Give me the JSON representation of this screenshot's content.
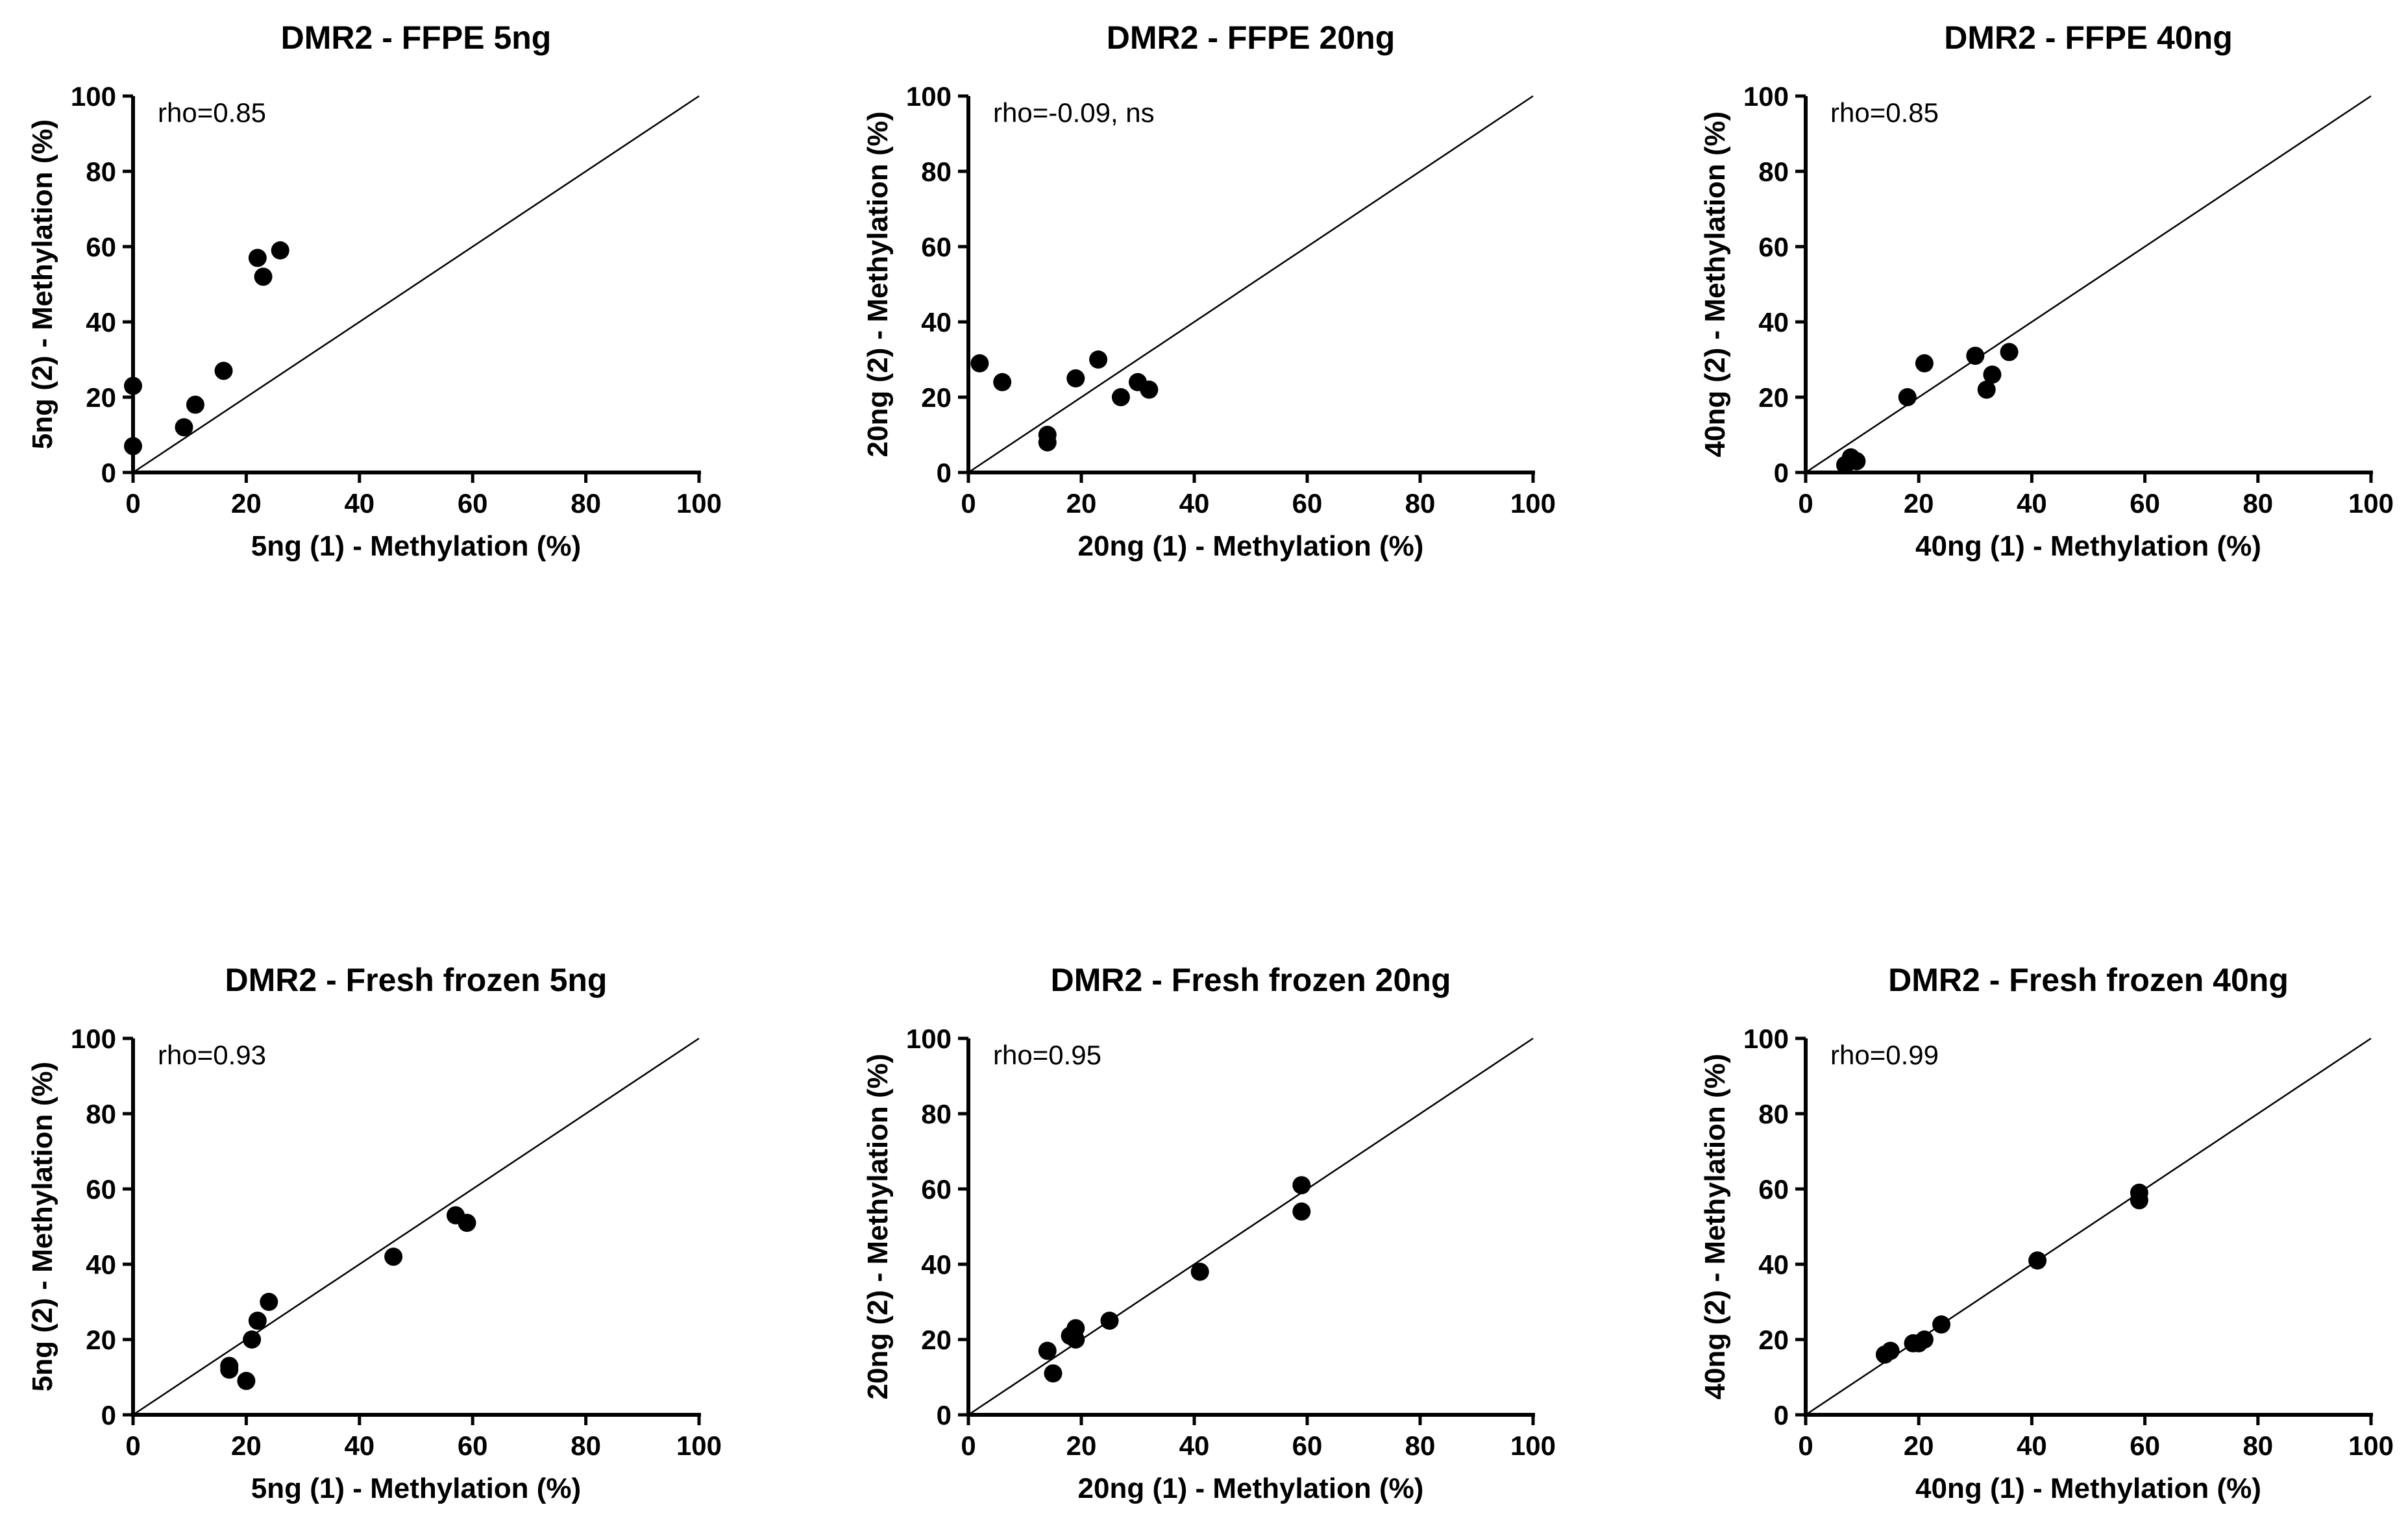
{
  "chart_data": [
    {
      "type": "scatter",
      "title": "DMR2 - FFPE 5ng",
      "xlabel": "5ng (1) - Methylation (%)",
      "ylabel": "5ng (2) - Methylation (%)",
      "xlim": [
        0,
        100
      ],
      "ylim": [
        0,
        100
      ],
      "xticks": [
        "0",
        "20",
        "40",
        "60",
        "80",
        "100"
      ],
      "yticks": [
        "0",
        "20",
        "40",
        "60",
        "80",
        "100"
      ],
      "annotation": "rho=0.85",
      "reference_line": "y = x",
      "points": [
        [
          0,
          23
        ],
        [
          0,
          7
        ],
        [
          9,
          12
        ],
        [
          11,
          18
        ],
        [
          16,
          27
        ],
        [
          22,
          57
        ],
        [
          23,
          52
        ],
        [
          26,
          59
        ]
      ]
    },
    {
      "type": "scatter",
      "title": "DMR2 - FFPE 20ng",
      "xlabel": "20ng (1) - Methylation (%)",
      "ylabel": "20ng (2) - Methylation (%)",
      "xlim": [
        0,
        100
      ],
      "ylim": [
        0,
        100
      ],
      "xticks": [
        "0",
        "20",
        "40",
        "60",
        "80",
        "100"
      ],
      "yticks": [
        "0",
        "20",
        "40",
        "60",
        "80",
        "100"
      ],
      "annotation": "rho=-0.09, ns",
      "reference_line": "y = x",
      "points": [
        [
          2,
          29
        ],
        [
          6,
          24
        ],
        [
          14,
          10
        ],
        [
          14,
          8
        ],
        [
          19,
          25
        ],
        [
          23,
          30
        ],
        [
          27,
          20
        ],
        [
          30,
          24
        ],
        [
          32,
          22
        ]
      ]
    },
    {
      "type": "scatter",
      "title": "DMR2 - FFPE 40ng",
      "xlabel": "40ng (1) - Methylation (%)",
      "ylabel": "40ng (2) - Methylation (%)",
      "xlim": [
        0,
        100
      ],
      "ylim": [
        0,
        100
      ],
      "xticks": [
        "0",
        "20",
        "40",
        "60",
        "80",
        "100"
      ],
      "yticks": [
        "0",
        "20",
        "40",
        "60",
        "80",
        "100"
      ],
      "annotation": "rho=0.85",
      "reference_line": "y = x",
      "points": [
        [
          7,
          2
        ],
        [
          8,
          4
        ],
        [
          9,
          3
        ],
        [
          18,
          20
        ],
        [
          21,
          29
        ],
        [
          30,
          31
        ],
        [
          32,
          22
        ],
        [
          33,
          26
        ],
        [
          36,
          32
        ]
      ]
    },
    {
      "type": "scatter",
      "title": "DMR2 - Fresh frozen 5ng",
      "xlabel": "5ng (1) - Methylation (%)",
      "ylabel": "5ng (2) - Methylation (%)",
      "xlim": [
        0,
        100
      ],
      "ylim": [
        0,
        100
      ],
      "xticks": [
        "0",
        "20",
        "40",
        "60",
        "80",
        "100"
      ],
      "yticks": [
        "0",
        "20",
        "40",
        "60",
        "80",
        "100"
      ],
      "annotation": "rho=0.93",
      "reference_line": "y = x",
      "points": [
        [
          17,
          13
        ],
        [
          17,
          12
        ],
        [
          20,
          9
        ],
        [
          21,
          20
        ],
        [
          22,
          25
        ],
        [
          24,
          30
        ],
        [
          46,
          42
        ],
        [
          57,
          53
        ],
        [
          59,
          51
        ]
      ]
    },
    {
      "type": "scatter",
      "title": "DMR2 - Fresh frozen 20ng",
      "xlabel": "20ng (1) - Methylation (%)",
      "ylabel": "20ng (2) - Methylation (%)",
      "xlim": [
        0,
        100
      ],
      "ylim": [
        0,
        100
      ],
      "xticks": [
        "0",
        "20",
        "40",
        "60",
        "80",
        "100"
      ],
      "yticks": [
        "0",
        "20",
        "40",
        "60",
        "80",
        "100"
      ],
      "annotation": "rho=0.95",
      "reference_line": "y = x",
      "points": [
        [
          14,
          17
        ],
        [
          15,
          11
        ],
        [
          18,
          21
        ],
        [
          19,
          23
        ],
        [
          19,
          20
        ],
        [
          25,
          25
        ],
        [
          41,
          38
        ],
        [
          59,
          61
        ],
        [
          59,
          54
        ]
      ]
    },
    {
      "type": "scatter",
      "title": "DMR2 - Fresh frozen 40ng",
      "xlabel": "40ng (1) - Methylation (%)",
      "ylabel": "40ng (2) - Methylation (%)",
      "xlim": [
        0,
        100
      ],
      "ylim": [
        0,
        100
      ],
      "xticks": [
        "0",
        "20",
        "40",
        "60",
        "80",
        "100"
      ],
      "yticks": [
        "0",
        "20",
        "40",
        "60",
        "80",
        "100"
      ],
      "annotation": "rho=0.99",
      "reference_line": "y = x",
      "points": [
        [
          14,
          16
        ],
        [
          15,
          17
        ],
        [
          19,
          19
        ],
        [
          20,
          19
        ],
        [
          21,
          20
        ],
        [
          24,
          24
        ],
        [
          41,
          41
        ],
        [
          59,
          59
        ],
        [
          59,
          57
        ]
      ]
    }
  ]
}
